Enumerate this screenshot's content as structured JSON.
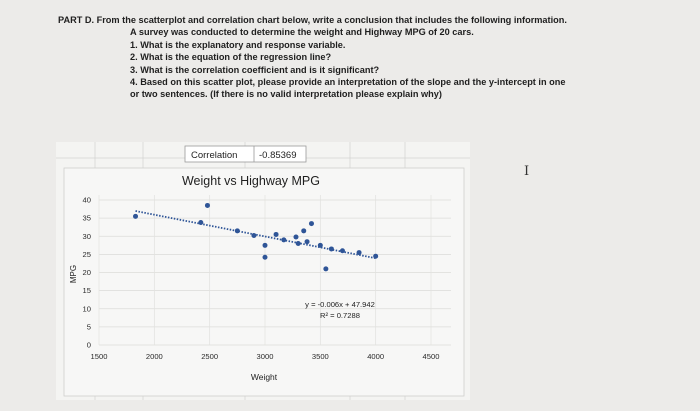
{
  "question": {
    "heading": "PART D. From the scatterplot and correlation chart below, write a conclusion that includes the following information.",
    "intro": "A survey was conducted to determine the weight and Highway MPG of 20 cars.",
    "items": [
      "1. What is the explanatory and response variable.",
      "2. What is the equation of the regression line?",
      "3. What is the correlation coefficient and is it significant?",
      "4. Based on this scatter plot, please provide an interpretation of the slope and the y-intercept in one",
      "or two sentences. (If there is no valid interpretation please explain why)"
    ]
  },
  "cursor_glyph": "I",
  "correlation": {
    "label": "Correlation",
    "value": "-0.85369"
  },
  "chart_data": {
    "type": "scatter",
    "title": "Weight vs Highway MPG",
    "xlabel": "Weight",
    "ylabel": "MPG",
    "xlim": [
      1500,
      4500
    ],
    "ylim": [
      0,
      40
    ],
    "x_ticks": [
      "1500",
      "2000",
      "2500",
      "3000",
      "3500",
      "4000",
      "4500"
    ],
    "y_ticks": [
      "0",
      "5",
      "10",
      "15",
      "20",
      "25",
      "30",
      "35",
      "40"
    ],
    "points": [
      {
        "x": 1830,
        "y": 35.5
      },
      {
        "x": 2480,
        "y": 38.5
      },
      {
        "x": 2420,
        "y": 33.8
      },
      {
        "x": 2750,
        "y": 31.5
      },
      {
        "x": 2900,
        "y": 30.2
      },
      {
        "x": 3000,
        "y": 27.5
      },
      {
        "x": 3000,
        "y": 24.2
      },
      {
        "x": 3100,
        "y": 30.5
      },
      {
        "x": 3170,
        "y": 29.0
      },
      {
        "x": 3280,
        "y": 29.8
      },
      {
        "x": 3300,
        "y": 28.0
      },
      {
        "x": 3350,
        "y": 31.5
      },
      {
        "x": 3380,
        "y": 28.5
      },
      {
        "x": 3420,
        "y": 33.5
      },
      {
        "x": 3500,
        "y": 27.5
      },
      {
        "x": 3550,
        "y": 21.0
      },
      {
        "x": 3600,
        "y": 26.5
      },
      {
        "x": 3700,
        "y": 26.0
      },
      {
        "x": 3850,
        "y": 25.5
      },
      {
        "x": 4000,
        "y": 24.5
      }
    ],
    "trendline": {
      "slope": -0.006,
      "intercept": 47.942,
      "x_range": [
        1830,
        4000
      ]
    },
    "equation": "y = -0.006x + 47.942",
    "r_squared": "R² = 0.7288",
    "point_color": "#2f5597"
  }
}
